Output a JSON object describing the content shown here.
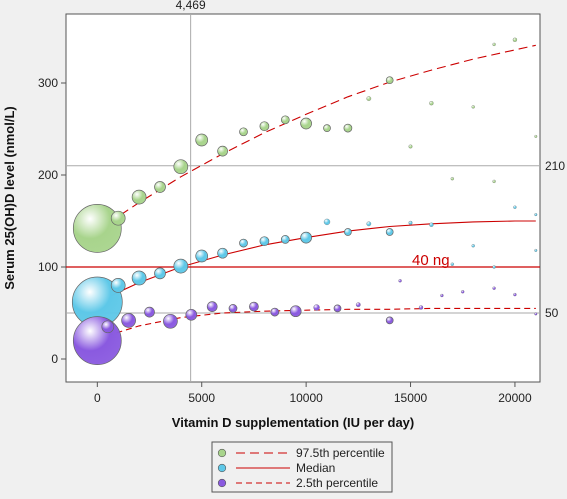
{
  "chart_data": {
    "type": "scatter",
    "xlabel": "Vitamin D supplementation (IU per day)",
    "ylabel": "Serum 25(OH)D level (nmol/L)",
    "xlim": [
      -1500,
      21200
    ],
    "ylim": [
      -25,
      375
    ],
    "x_ticks": [
      0,
      5000,
      10000,
      15000,
      20000
    ],
    "x_tick_labels": [
      "0",
      "5000",
      "10000",
      "15000",
      "20000"
    ],
    "y_ticks": [
      0,
      100,
      200,
      300
    ],
    "y_tick_labels": [
      "0",
      "100",
      "200",
      "300"
    ],
    "grid": false,
    "colors": {
      "p975": "#a8d48c",
      "median": "#5ec8e8",
      "p25": "#8a5ae0",
      "curve": "#cc0000",
      "reference": "#aaaaaa"
    },
    "reference_lines": {
      "vertical": {
        "x": 4469,
        "label": "4,469"
      },
      "horizontal": [
        {
          "y": 210,
          "label": "210",
          "color": "gray"
        },
        {
          "y": 100,
          "label": "40 ng",
          "color": "red"
        },
        {
          "y": 50,
          "label": "50",
          "color": "gray"
        }
      ]
    },
    "curves": [
      {
        "name": "97.5th percentile",
        "style": "long-dash",
        "x": [
          0,
          2000,
          4000,
          6000,
          8000,
          10000,
          12000,
          14000,
          16000,
          18000,
          20000,
          21000
        ],
        "y": [
          140,
          170,
          198,
          223,
          246,
          266,
          285,
          301,
          314,
          326,
          336,
          341
        ]
      },
      {
        "name": "Median",
        "style": "solid",
        "x": [
          0,
          2000,
          4000,
          6000,
          8000,
          10000,
          12000,
          14000,
          16000,
          18000,
          20000,
          21000
        ],
        "y": [
          62,
          83,
          100,
          113,
          124,
          132,
          139,
          144,
          147,
          149,
          150,
          150
        ]
      },
      {
        "name": "2.5th percentile",
        "style": "dash",
        "x": [
          0,
          2000,
          4000,
          6000,
          8000,
          10000,
          12000,
          14000,
          16000,
          18000,
          20000,
          21000
        ],
        "y": [
          22,
          36,
          45,
          50,
          52,
          53,
          54,
          54,
          55,
          55,
          55,
          55
        ]
      }
    ],
    "series": [
      {
        "name": "97.5th percentile",
        "points": [
          [
            0,
            142,
            24
          ],
          [
            1000,
            153,
            7
          ],
          [
            2000,
            176,
            7
          ],
          [
            3000,
            187,
            5.5
          ],
          [
            4000,
            209,
            7
          ],
          [
            5000,
            238,
            6
          ],
          [
            6000,
            226,
            5
          ],
          [
            7000,
            247,
            4
          ],
          [
            8000,
            253,
            4.5
          ],
          [
            9000,
            260,
            4
          ],
          [
            10000,
            256,
            5.5
          ],
          [
            11000,
            251,
            3.5
          ],
          [
            12000,
            251,
            4
          ],
          [
            13000,
            283,
            2.2
          ],
          [
            14000,
            303,
            3.5
          ],
          [
            15000,
            231,
            1.8
          ],
          [
            16000,
            278,
            2
          ],
          [
            17000,
            196,
            1.5
          ],
          [
            18000,
            274,
            1.5
          ],
          [
            19000,
            193,
            1.5
          ],
          [
            19000,
            342,
            1.5
          ],
          [
            20000,
            347,
            2
          ],
          [
            21000,
            242,
            1.3
          ]
        ]
      },
      {
        "name": "Median",
        "points": [
          [
            0,
            62,
            25
          ],
          [
            1000,
            80,
            7
          ],
          [
            2000,
            88,
            7
          ],
          [
            3000,
            93,
            5.5
          ],
          [
            4000,
            101,
            7
          ],
          [
            5000,
            112,
            6
          ],
          [
            6000,
            115,
            5
          ],
          [
            7000,
            126,
            4
          ],
          [
            8000,
            128,
            4.5
          ],
          [
            9000,
            130,
            4
          ],
          [
            10000,
            132,
            5.5
          ],
          [
            11000,
            149,
            3
          ],
          [
            12000,
            138,
            3.5
          ],
          [
            13000,
            147,
            2.2
          ],
          [
            14000,
            138,
            3.5
          ],
          [
            15000,
            148,
            1.8
          ],
          [
            16000,
            146,
            2
          ],
          [
            17000,
            103,
            1.5
          ],
          [
            18000,
            123,
            1.5
          ],
          [
            19000,
            100,
            1.5
          ],
          [
            20000,
            165,
            1.5
          ],
          [
            21000,
            118,
            1.3
          ],
          [
            21000,
            157,
            1.3
          ]
        ]
      },
      {
        "name": "2.5th percentile",
        "points": [
          [
            0,
            20,
            24
          ],
          [
            500,
            35,
            6
          ],
          [
            1500,
            42,
            7
          ],
          [
            2500,
            51,
            5
          ],
          [
            3500,
            41,
            7
          ],
          [
            4500,
            48,
            5.5
          ],
          [
            5500,
            57,
            5
          ],
          [
            6500,
            55,
            4
          ],
          [
            7500,
            57,
            4.5
          ],
          [
            8500,
            51,
            4
          ],
          [
            9500,
            52,
            5.5
          ],
          [
            10500,
            56,
            3
          ],
          [
            11500,
            55,
            3.5
          ],
          [
            12500,
            59,
            2.2
          ],
          [
            14000,
            42,
            3.5
          ],
          [
            14500,
            85,
            1.5
          ],
          [
            15500,
            56,
            2
          ],
          [
            16500,
            69,
            1.5
          ],
          [
            17500,
            73,
            1.5
          ],
          [
            19000,
            77,
            1.5
          ],
          [
            20000,
            70,
            1.5
          ],
          [
            21000,
            49,
            1.3
          ]
        ]
      }
    ],
    "legend": {
      "position": "bottom",
      "entries": [
        {
          "label": "97.5th percentile",
          "color": "#a8d48c",
          "line": "long-dash"
        },
        {
          "label": "Median",
          "color": "#5ec8e8",
          "line": "solid"
        },
        {
          "label": "2.5th percentile",
          "color": "#8a5ae0",
          "line": "dash"
        }
      ]
    }
  }
}
